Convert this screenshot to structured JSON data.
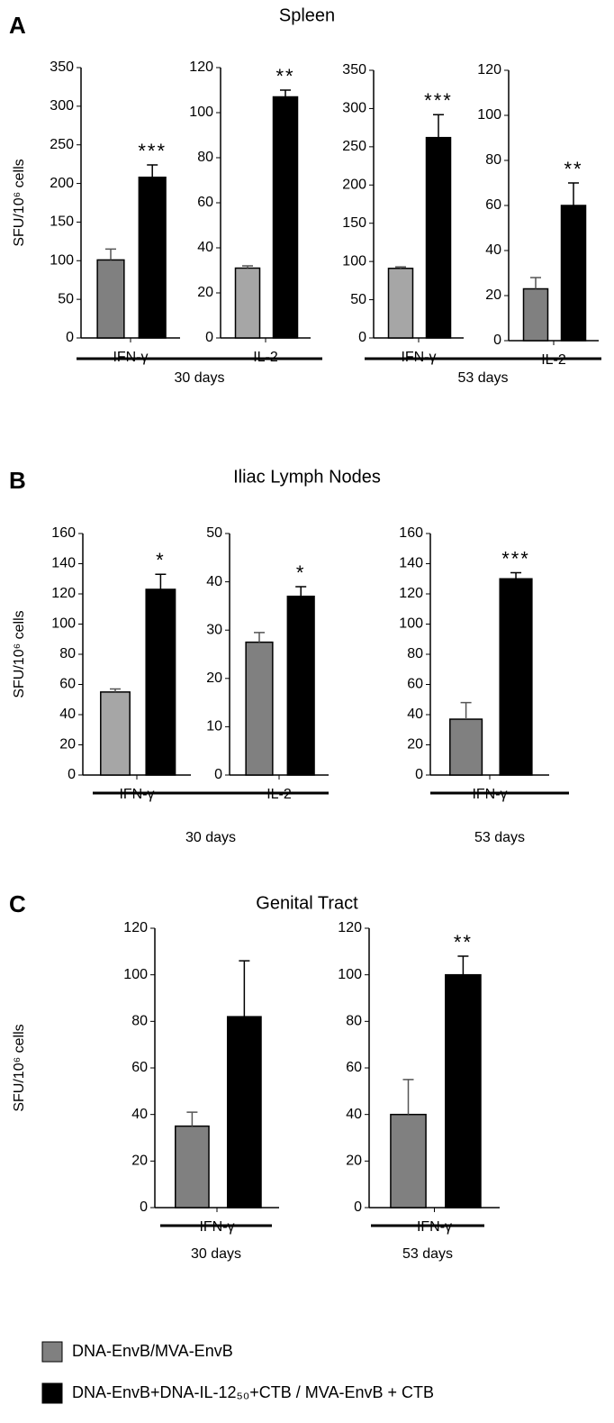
{
  "panels": [
    {
      "label": "A",
      "title": "Spleen",
      "groups": [
        "30 days",
        "53 days"
      ]
    },
    {
      "label": "B",
      "title": "Iliac Lymph Nodes",
      "groups": [
        "30 days",
        "53 days"
      ]
    },
    {
      "label": "C",
      "title": "Genital Tract",
      "groups": [
        "30 days",
        "53 days"
      ]
    }
  ],
  "chart_data": [
    {
      "type": "bar",
      "ylabel": "SFU/10⁶ cells",
      "xlabel": "IFN-γ",
      "values": [
        101,
        208
      ],
      "errors": [
        14,
        16
      ],
      "colors": [
        "#808080",
        "#000000"
      ],
      "annotations": [
        null,
        "***"
      ],
      "ylim": [
        0,
        350
      ],
      "yticks": [
        0,
        50,
        100,
        150,
        200,
        250,
        300,
        350
      ]
    },
    {
      "type": "bar",
      "xlabel": "IL-2",
      "values": [
        31,
        107
      ],
      "errors": [
        1,
        3
      ],
      "colors": [
        "#a6a6a6",
        "#000000"
      ],
      "annotations": [
        null,
        "**"
      ],
      "ylim": [
        0,
        120
      ],
      "yticks": [
        0,
        20,
        40,
        60,
        80,
        100,
        120
      ]
    },
    {
      "type": "bar",
      "xlabel": "IFN-γ",
      "values": [
        91,
        262
      ],
      "errors": [
        2,
        30
      ],
      "colors": [
        "#a6a6a6",
        "#000000"
      ],
      "annotations": [
        null,
        "***"
      ],
      "ylim": [
        0,
        350
      ],
      "yticks": [
        0,
        50,
        100,
        150,
        200,
        250,
        300,
        350
      ]
    },
    {
      "type": "bar",
      "xlabel": "IL-2",
      "values": [
        23,
        60
      ],
      "errors": [
        5,
        10
      ],
      "colors": [
        "#808080",
        "#000000"
      ],
      "annotations": [
        null,
        "**"
      ],
      "ylim": [
        0,
        120
      ],
      "yticks": [
        0,
        20,
        40,
        60,
        80,
        100,
        120
      ]
    },
    {
      "type": "bar",
      "ylabel": "SFU/10⁶ cells",
      "xlabel": "IFN-γ",
      "values": [
        55,
        123
      ],
      "errors": [
        2,
        10
      ],
      "colors": [
        "#a6a6a6",
        "#000000"
      ],
      "annotations": [
        null,
        "*"
      ],
      "ylim": [
        0,
        160
      ],
      "yticks": [
        0,
        20,
        40,
        60,
        80,
        100,
        120,
        140,
        160
      ]
    },
    {
      "type": "bar",
      "xlabel": "IL-2",
      "values": [
        27.5,
        37
      ],
      "errors": [
        2,
        2
      ],
      "colors": [
        "#808080",
        "#000000"
      ],
      "annotations": [
        null,
        "*"
      ],
      "ylim": [
        0,
        50
      ],
      "yticks": [
        0,
        10,
        20,
        30,
        40,
        50
      ]
    },
    {
      "type": "bar",
      "xlabel": "IFN-γ",
      "values": [
        37,
        130
      ],
      "errors": [
        11,
        4
      ],
      "colors": [
        "#808080",
        "#000000"
      ],
      "annotations": [
        null,
        "***"
      ],
      "ylim": [
        0,
        160
      ],
      "yticks": [
        0,
        20,
        40,
        60,
        80,
        100,
        120,
        140,
        160
      ]
    },
    {
      "type": "bar",
      "ylabel": "SFU/10⁶ cells",
      "xlabel": "IFN-γ",
      "values": [
        35,
        82
      ],
      "errors": [
        6,
        24
      ],
      "colors": [
        "#808080",
        "#000000"
      ],
      "ylim": [
        0,
        120
      ],
      "yticks": [
        0,
        20,
        40,
        60,
        80,
        100,
        120
      ]
    },
    {
      "type": "bar",
      "xlabel": "IFN-γ",
      "values": [
        40,
        100
      ],
      "errors": [
        15,
        8
      ],
      "colors": [
        "#808080",
        "#000000"
      ],
      "annotations": [
        null,
        "**"
      ],
      "ylim": [
        0,
        120
      ],
      "yticks": [
        0,
        20,
        40,
        60,
        80,
        100,
        120
      ]
    }
  ],
  "legend": [
    {
      "name": "DNA-EnvB/MVA-EnvB",
      "color": "#808080"
    },
    {
      "name": "DNA-EnvB+DNA-IL-12₅₀+CTB / MVA-EnvB + CTB",
      "color": "#000000"
    }
  ]
}
